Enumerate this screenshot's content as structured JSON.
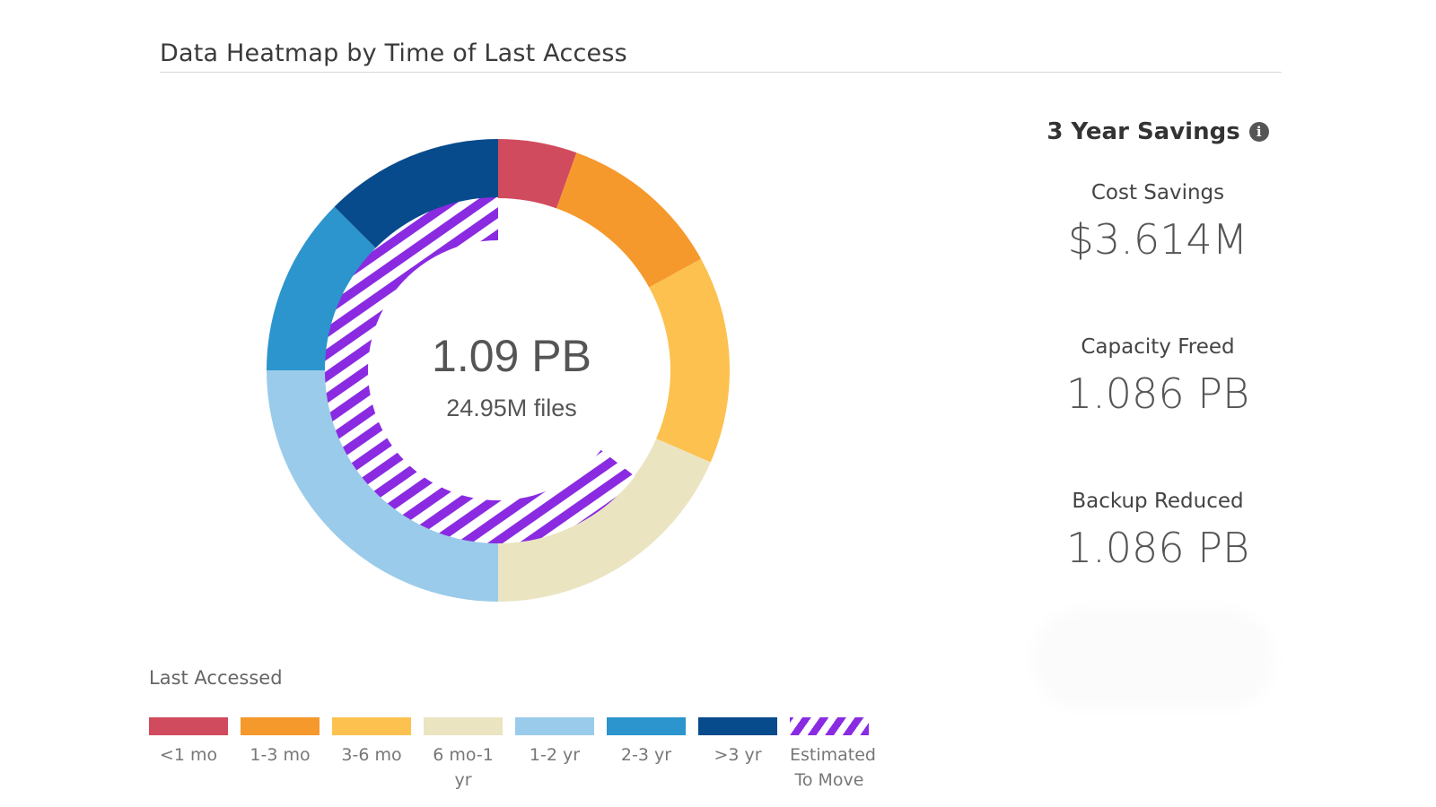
{
  "panel": {
    "title": "Data Heatmap by Time of Last Access"
  },
  "center": {
    "value": "1.09 PB",
    "sub": "24.95M files"
  },
  "savings": {
    "title": "3 Year Savings",
    "info_icon": "info-icon",
    "metrics": [
      {
        "label": "Cost Savings",
        "value": "$3.614M"
      },
      {
        "label": "Capacity Freed",
        "value": "1.086 PB"
      },
      {
        "label": "Backup Reduced",
        "value": "1.086 PB"
      }
    ]
  },
  "legend": {
    "title": "Last Accessed",
    "items": [
      {
        "label": "<1 mo",
        "color": "#d14b5e"
      },
      {
        "label": "1-3 mo",
        "color": "#f5992c"
      },
      {
        "label": "3-6 mo",
        "color": "#fcc14f"
      },
      {
        "label": "6 mo-1 yr",
        "color": "#ebe4c1"
      },
      {
        "label": "1-2 yr",
        "color": "#9acbea"
      },
      {
        "label": "2-3 yr",
        "color": "#2c95cd"
      },
      {
        "label": ">3 yr",
        "color": "#074b8c"
      },
      {
        "label": "Estimated To Move",
        "color": "#8a2be2",
        "pattern": "hatched"
      }
    ]
  },
  "chart_data": {
    "type": "pie",
    "title": "Data Heatmap by Time of Last Access",
    "center_label": "1.09 PB",
    "center_sublabel": "24.95M files",
    "series": [
      {
        "name": "Last Accessed",
        "categories": [
          "<1 mo",
          "1-3 mo",
          "3-6 mo",
          "6 mo-1 yr",
          "1-2 yr",
          "2-3 yr",
          ">3 yr"
        ],
        "values": [
          5.5,
          11.5,
          14.5,
          18.5,
          25,
          12.5,
          12.5
        ],
        "colors": [
          "#d14b5e",
          "#f5992c",
          "#fcc14f",
          "#ebe4c1",
          "#9acbea",
          "#2c95cd",
          "#074b8c"
        ]
      },
      {
        "name": "Estimated To Move",
        "categories": [
          "Estimated To Move"
        ],
        "values": [
          64.5
        ],
        "start_value": 35.5,
        "color": "#8a2be2",
        "pattern": "hatched"
      }
    ],
    "legend_position": "bottom-left"
  }
}
